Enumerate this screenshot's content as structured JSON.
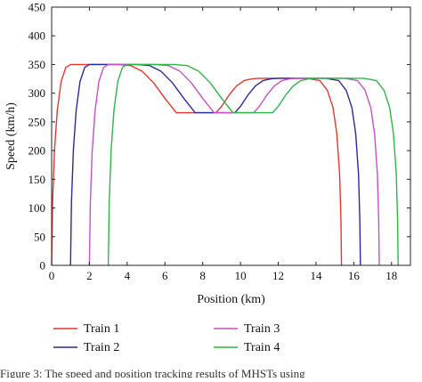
{
  "caption": "Figure 3: The speed and position tracking results of MHSTs using",
  "chart_data": {
    "type": "line",
    "title": "",
    "xlabel": "Position (km)",
    "ylabel": "Speed (km/h)",
    "xlim": [
      0,
      19
    ],
    "ylim": [
      0,
      450
    ],
    "xticks": [
      0,
      2,
      4,
      6,
      8,
      10,
      12,
      14,
      16,
      18
    ],
    "yticks": [
      0,
      50,
      100,
      150,
      200,
      250,
      300,
      350,
      400,
      450
    ],
    "grid": false,
    "legend_position": "below plot",
    "series": [
      {
        "name": "Train 1",
        "color": "#e8352e",
        "x": [
          0.0,
          0.05,
          0.15,
          0.3,
          0.5,
          0.75,
          1.0,
          1.5,
          2.5,
          3.5,
          4.2,
          4.8,
          5.4,
          6.0,
          6.6,
          7.2,
          7.8,
          8.4,
          8.7,
          9.0,
          9.4,
          9.8,
          10.2,
          10.6,
          11.0,
          11.5,
          12.5,
          13.5,
          14.2,
          14.6,
          14.9,
          15.1,
          15.25,
          15.32,
          15.35
        ],
        "y": [
          0,
          110,
          200,
          270,
          320,
          345,
          350,
          350,
          350,
          350,
          348,
          338,
          318,
          291,
          266,
          266,
          266,
          266,
          266,
          277,
          297,
          313,
          322,
          325,
          326,
          326,
          326,
          326,
          322,
          305,
          275,
          230,
          160,
          80,
          0
        ]
      },
      {
        "name": "Train 2",
        "color": "#2b2a9a",
        "x": [
          1.0,
          1.05,
          1.15,
          1.3,
          1.5,
          1.75,
          2.0,
          2.5,
          3.5,
          4.5,
          5.2,
          5.8,
          6.4,
          7.0,
          7.6,
          8.2,
          8.8,
          9.4,
          9.7,
          10.0,
          10.4,
          10.8,
          11.2,
          11.6,
          12.0,
          12.5,
          13.5,
          14.5,
          15.2,
          15.6,
          15.9,
          16.1,
          16.25,
          16.32,
          16.35
        ],
        "y": [
          0,
          110,
          200,
          270,
          320,
          345,
          350,
          350,
          350,
          350,
          348,
          338,
          318,
          291,
          266,
          266,
          266,
          266,
          266,
          277,
          297,
          313,
          322,
          325,
          326,
          326,
          326,
          326,
          322,
          305,
          275,
          230,
          160,
          80,
          0
        ]
      },
      {
        "name": "Train 3",
        "color": "#c94fc9",
        "x": [
          2.0,
          2.05,
          2.15,
          2.3,
          2.5,
          2.75,
          3.0,
          3.5,
          4.5,
          5.5,
          6.2,
          6.8,
          7.4,
          8.0,
          8.6,
          9.2,
          9.8,
          10.4,
          10.7,
          11.0,
          11.4,
          11.8,
          12.2,
          12.6,
          13.0,
          13.5,
          14.5,
          15.5,
          16.2,
          16.6,
          16.9,
          17.1,
          17.25,
          17.32,
          17.35
        ],
        "y": [
          0,
          110,
          200,
          270,
          320,
          345,
          350,
          350,
          350,
          350,
          348,
          338,
          318,
          291,
          266,
          266,
          266,
          266,
          266,
          277,
          297,
          313,
          322,
          325,
          326,
          326,
          326,
          326,
          322,
          305,
          275,
          230,
          160,
          80,
          0
        ]
      },
      {
        "name": "Train 4",
        "color": "#2fb44a",
        "x": [
          3.0,
          3.05,
          3.15,
          3.3,
          3.5,
          3.75,
          4.0,
          4.5,
          5.5,
          6.5,
          7.2,
          7.8,
          8.4,
          9.0,
          9.6,
          10.2,
          10.8,
          11.4,
          11.7,
          12.0,
          12.4,
          12.8,
          13.2,
          13.6,
          14.0,
          14.5,
          15.5,
          16.5,
          17.2,
          17.6,
          17.9,
          18.1,
          18.25,
          18.32,
          18.35
        ],
        "y": [
          0,
          110,
          200,
          270,
          320,
          345,
          350,
          350,
          350,
          350,
          348,
          338,
          318,
          291,
          266,
          266,
          266,
          266,
          266,
          277,
          297,
          313,
          322,
          325,
          326,
          326,
          326,
          326,
          322,
          305,
          275,
          230,
          160,
          80,
          0
        ]
      }
    ]
  }
}
